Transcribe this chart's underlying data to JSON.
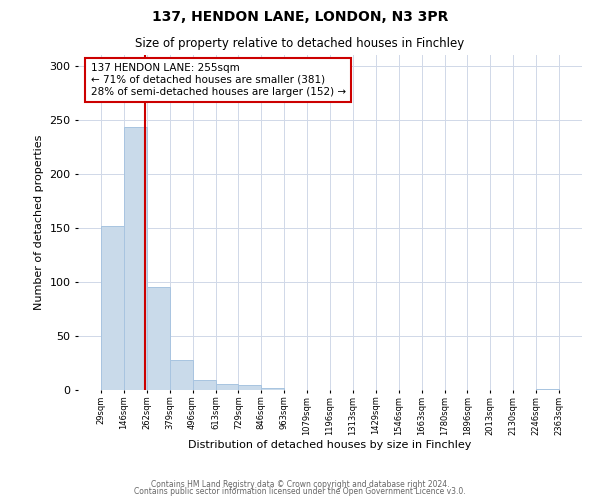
{
  "title": "137, HENDON LANE, LONDON, N3 3PR",
  "subtitle": "Size of property relative to detached houses in Finchley",
  "xlabel": "Distribution of detached houses by size in Finchley",
  "ylabel": "Number of detached properties",
  "bar_color": "#c9daea",
  "bar_edgecolor": "#a8c4e0",
  "background_color": "#ffffff",
  "grid_color": "#d0d8e8",
  "vline_x": 255,
  "vline_color": "#cc0000",
  "annotation_line1": "137 HENDON LANE: 255sqm",
  "annotation_line2": "← 71% of detached houses are smaller (381)",
  "annotation_line3": "28% of semi-detached houses are larger (152) →",
  "annotation_box_color": "#ffffff",
  "annotation_box_edgecolor": "#cc0000",
  "bin_edges": [
    29,
    146,
    262,
    379,
    496,
    613,
    729,
    846,
    963,
    1079,
    1196,
    1313,
    1429,
    1546,
    1663,
    1780,
    1896,
    2013,
    2130,
    2246,
    2363
  ],
  "bin_counts": [
    152,
    243,
    95,
    28,
    9,
    6,
    5,
    2,
    0,
    0,
    0,
    0,
    0,
    0,
    0,
    0,
    0,
    0,
    0,
    1
  ],
  "ylim": [
    0,
    310
  ],
  "yticks": [
    0,
    50,
    100,
    150,
    200,
    250,
    300
  ],
  "footer_text1": "Contains HM Land Registry data © Crown copyright and database right 2024.",
  "footer_text2": "Contains public sector information licensed under the Open Government Licence v3.0."
}
